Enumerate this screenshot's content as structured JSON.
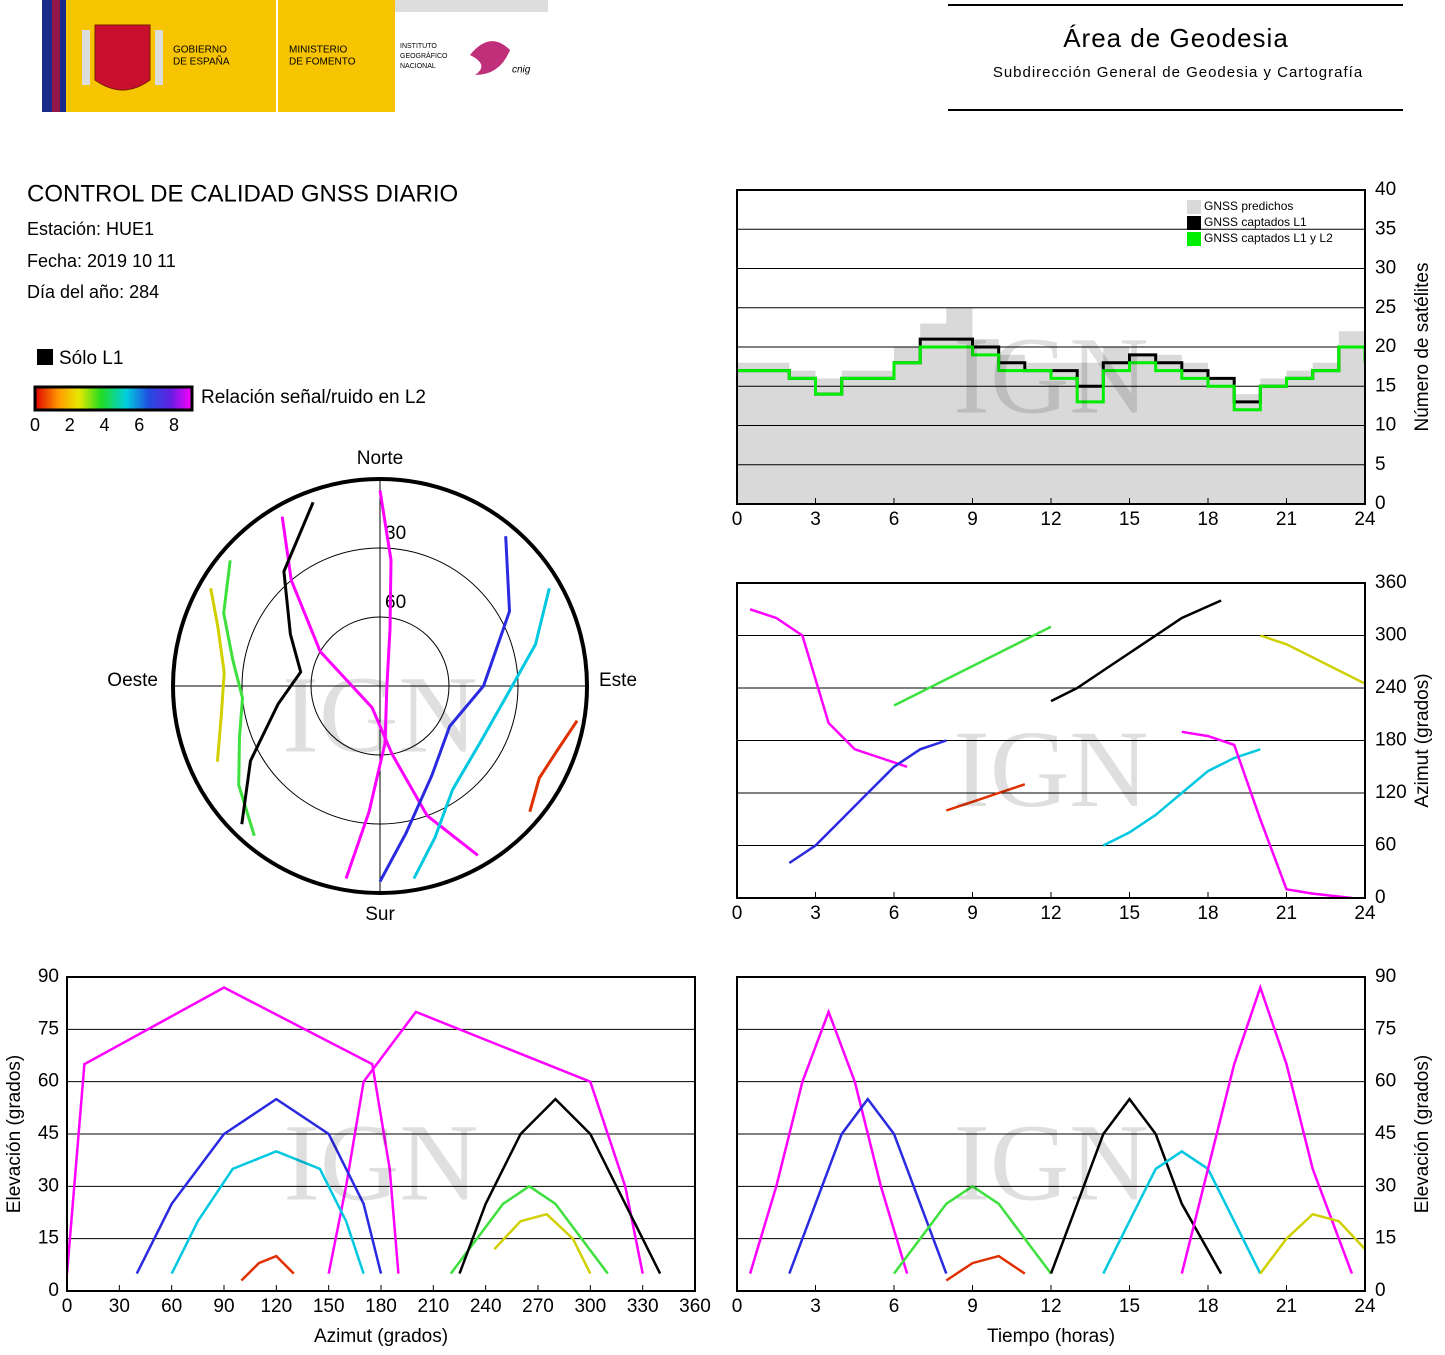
{
  "header": {
    "gobierno": [
      "GOBIERNO",
      "DE ESPAÑA"
    ],
    "ministerio": [
      "MINISTERIO",
      "DE FOMENTO"
    ],
    "instituto": [
      "INSTITUTO",
      "GEOGRÁFICO",
      "NACIONAL"
    ],
    "cnig": "cnig",
    "title": "Área de Geodesia",
    "subtitle": "Subdirección General de Geodesia y Cartografía"
  },
  "report": {
    "title": "CONTROL DE CALIDAD GNSS DIARIO",
    "station": "Estación: HUE1",
    "date": "Fecha: 2019 10 11",
    "doy": "Día del año: 284",
    "l1_only": "Sólo L1",
    "snr_label": "Relación señal/ruido en L2",
    "snr_ticks": [
      0,
      2,
      4,
      6,
      8
    ]
  },
  "watermark": "IGN",
  "chart_data": [
    {
      "type": "polar",
      "directions": [
        "Norte",
        "Este",
        "Sur",
        "Oeste"
      ],
      "rlim": [
        0,
        90
      ],
      "rticks": [
        30,
        60
      ],
      "series": [
        {
          "color": "#ff00ff",
          "azimuth": [
            330,
            320,
            300,
            200,
            170,
            160,
            150
          ],
          "elevation": [
            5,
            30,
            60,
            80,
            60,
            30,
            5
          ]
        },
        {
          "color": "#2a2ae0",
          "azimuth": [
            40,
            60,
            90,
            120,
            150,
            170,
            180
          ],
          "elevation": [
            5,
            25,
            45,
            55,
            45,
            25,
            5
          ]
        },
        {
          "color": "#3ee03e",
          "azimuth": [
            220,
            235,
            250,
            265,
            280,
            295,
            310
          ],
          "elevation": [
            5,
            15,
            25,
            30,
            25,
            15,
            5
          ]
        },
        {
          "color": "#000000",
          "azimuth": [
            225,
            240,
            260,
            280,
            300,
            320,
            340
          ],
          "elevation": [
            5,
            25,
            45,
            55,
            45,
            25,
            5
          ]
        },
        {
          "color": "#00c8e0",
          "azimuth": [
            60,
            75,
            95,
            120,
            145,
            160,
            170
          ],
          "elevation": [
            5,
            20,
            35,
            40,
            35,
            20,
            5
          ]
        },
        {
          "color": "#ff00ff",
          "azimuth": [
            190,
            185,
            175,
            90,
            10,
            5,
            0
          ],
          "elevation": [
            5,
            35,
            65,
            87,
            65,
            35,
            5
          ]
        },
        {
          "color": "#e03000",
          "azimuth": [
            100,
            110,
            120,
            130
          ],
          "elevation": [
            3,
            8,
            10,
            5
          ]
        },
        {
          "color": "#d0d000",
          "azimuth": [
            300,
            290,
            275,
            260,
            245
          ],
          "elevation": [
            5,
            15,
            22,
            20,
            12
          ]
        }
      ]
    },
    {
      "type": "step",
      "ylabel": "Número de satélites",
      "xlim": [
        0,
        24
      ],
      "xticks": [
        0,
        3,
        6,
        9,
        12,
        15,
        18,
        21,
        24
      ],
      "ylim": [
        0,
        40
      ],
      "yticks": [
        0,
        5,
        10,
        15,
        20,
        25,
        30,
        35,
        40
      ],
      "grid": true,
      "legend": "top-right",
      "x": [
        0,
        1,
        2,
        3,
        4,
        5,
        6,
        7,
        8,
        9,
        10,
        11,
        12,
        13,
        14,
        15,
        16,
        17,
        18,
        19,
        20,
        21,
        22,
        23,
        24
      ],
      "series": [
        {
          "name": "GNSS predichos",
          "color": "#d9d9d9",
          "style": "area",
          "values": [
            18,
            18,
            17,
            16,
            17,
            17,
            20,
            23,
            25,
            21,
            19,
            18,
            18,
            18,
            20,
            19,
            19,
            18,
            16,
            14,
            16,
            17,
            18,
            22,
            19
          ]
        },
        {
          "name": "GNSS captados L1",
          "color": "#000000",
          "values": [
            17,
            17,
            16,
            14,
            16,
            16,
            18,
            21,
            21,
            20,
            18,
            17,
            17,
            15,
            18,
            19,
            18,
            17,
            16,
            13,
            15,
            16,
            17,
            20,
            19
          ]
        },
        {
          "name": "GNSS captados L1 y L2",
          "color": "#00ee00",
          "values": [
            17,
            17,
            16,
            14,
            16,
            16,
            18,
            20,
            20,
            19,
            17,
            17,
            16,
            13,
            17,
            18,
            17,
            16,
            15,
            12,
            15,
            16,
            17,
            20,
            18
          ]
        }
      ]
    },
    {
      "type": "line",
      "ylabel": "Azimut (grados)",
      "xlim": [
        0,
        24
      ],
      "xticks": [
        0,
        3,
        6,
        9,
        12,
        15,
        18,
        21,
        24
      ],
      "ylim": [
        0,
        360
      ],
      "yticks": [
        0,
        60,
        120,
        180,
        240,
        300,
        360
      ],
      "grid": true,
      "series": [
        {
          "color": "#ff00ff",
          "x": [
            0.5,
            1.5,
            2.5,
            3.5,
            4.5,
            5.5,
            6.5
          ],
          "values": [
            330,
            320,
            300,
            200,
            170,
            160,
            150
          ]
        },
        {
          "color": "#2a2ae0",
          "x": [
            2,
            3,
            4,
            5,
            6,
            7,
            8
          ],
          "values": [
            40,
            60,
            90,
            120,
            150,
            170,
            180
          ]
        },
        {
          "color": "#3ee03e",
          "x": [
            6,
            7,
            8,
            9,
            10,
            11,
            12
          ],
          "values": [
            220,
            235,
            250,
            265,
            280,
            295,
            310
          ]
        },
        {
          "color": "#000000",
          "x": [
            12,
            13,
            14,
            15,
            16,
            17,
            18.5
          ],
          "values": [
            225,
            240,
            260,
            280,
            300,
            320,
            340
          ]
        },
        {
          "color": "#00c8e0",
          "x": [
            14,
            15,
            16,
            17,
            18,
            19,
            20
          ],
          "values": [
            60,
            75,
            95,
            120,
            145,
            160,
            170
          ]
        },
        {
          "color": "#ff00ff",
          "x": [
            17,
            18,
            19,
            20,
            21,
            22,
            23.5
          ],
          "values": [
            190,
            185,
            175,
            90,
            10,
            5,
            0
          ]
        },
        {
          "color": "#e03000",
          "x": [
            8,
            9,
            10,
            11
          ],
          "values": [
            100,
            110,
            120,
            130
          ]
        },
        {
          "color": "#d0d000",
          "x": [
            20,
            21,
            22,
            23,
            24
          ],
          "values": [
            300,
            290,
            275,
            260,
            245
          ]
        }
      ]
    },
    {
      "type": "line",
      "xlabel": "Azimut (grados)",
      "ylabel": "Elevación (grados)",
      "xlim": [
        0,
        360
      ],
      "xticks": [
        0,
        30,
        60,
        90,
        120,
        150,
        180,
        210,
        240,
        270,
        300,
        330,
        360
      ],
      "ylim": [
        0,
        90
      ],
      "yticks": [
        0,
        15,
        30,
        45,
        60,
        75,
        90
      ],
      "grid": true,
      "series": [
        {
          "color": "#ff00ff",
          "x": [
            330,
            320,
            300,
            200,
            170,
            160,
            150
          ],
          "values": [
            5,
            30,
            60,
            80,
            60,
            30,
            5
          ]
        },
        {
          "color": "#2a2ae0",
          "x": [
            40,
            60,
            90,
            120,
            150,
            170,
            180
          ],
          "values": [
            5,
            25,
            45,
            55,
            45,
            25,
            5
          ]
        },
        {
          "color": "#3ee03e",
          "x": [
            220,
            235,
            250,
            265,
            280,
            295,
            310
          ],
          "values": [
            5,
            15,
            25,
            30,
            25,
            15,
            5
          ]
        },
        {
          "color": "#000000",
          "x": [
            225,
            240,
            260,
            280,
            300,
            320,
            340
          ],
          "values": [
            5,
            25,
            45,
            55,
            45,
            25,
            5
          ]
        },
        {
          "color": "#00c8e0",
          "x": [
            60,
            75,
            95,
            120,
            145,
            160,
            170
          ],
          "values": [
            5,
            20,
            35,
            40,
            35,
            20,
            5
          ]
        },
        {
          "color": "#ff00ff",
          "x": [
            190,
            185,
            175,
            90,
            10,
            5,
            0
          ],
          "values": [
            5,
            35,
            65,
            87,
            65,
            35,
            5
          ]
        },
        {
          "color": "#e03000",
          "x": [
            100,
            110,
            120,
            130
          ],
          "values": [
            3,
            8,
            10,
            5
          ]
        },
        {
          "color": "#d0d000",
          "x": [
            300,
            290,
            275,
            260,
            245
          ],
          "values": [
            5,
            15,
            22,
            20,
            12
          ]
        }
      ]
    },
    {
      "type": "line",
      "xlabel": "Tiempo (horas)",
      "ylabel": "Elevación (grados)",
      "xlim": [
        0,
        24
      ],
      "xticks": [
        0,
        3,
        6,
        9,
        12,
        15,
        18,
        21,
        24
      ],
      "ylim": [
        0,
        90
      ],
      "yticks": [
        0,
        15,
        30,
        45,
        60,
        75,
        90
      ],
      "grid": true,
      "series": [
        {
          "color": "#ff00ff",
          "x": [
            0.5,
            1.5,
            2.5,
            3.5,
            4.5,
            5.5,
            6.5
          ],
          "values": [
            5,
            30,
            60,
            80,
            60,
            30,
            5
          ]
        },
        {
          "color": "#2a2ae0",
          "x": [
            2,
            3,
            4,
            5,
            6,
            7,
            8
          ],
          "values": [
            5,
            25,
            45,
            55,
            45,
            25,
            5
          ]
        },
        {
          "color": "#3ee03e",
          "x": [
            6,
            7,
            8,
            9,
            10,
            11,
            12
          ],
          "values": [
            5,
            15,
            25,
            30,
            25,
            15,
            5
          ]
        },
        {
          "color": "#000000",
          "x": [
            12,
            13,
            14,
            15,
            16,
            17,
            18.5
          ],
          "values": [
            5,
            25,
            45,
            55,
            45,
            25,
            5
          ]
        },
        {
          "color": "#00c8e0",
          "x": [
            14,
            15,
            16,
            17,
            18,
            19,
            20
          ],
          "values": [
            5,
            20,
            35,
            40,
            35,
            20,
            5
          ]
        },
        {
          "color": "#ff00ff",
          "x": [
            17,
            18,
            19,
            20,
            21,
            22,
            23.5
          ],
          "values": [
            5,
            35,
            65,
            87,
            65,
            35,
            5
          ]
        },
        {
          "color": "#e03000",
          "x": [
            8,
            9,
            10,
            11
          ],
          "values": [
            3,
            8,
            10,
            5
          ]
        },
        {
          "color": "#d0d000",
          "x": [
            20,
            21,
            22,
            23,
            24
          ],
          "values": [
            5,
            15,
            22,
            20,
            12
          ]
        }
      ]
    }
  ]
}
